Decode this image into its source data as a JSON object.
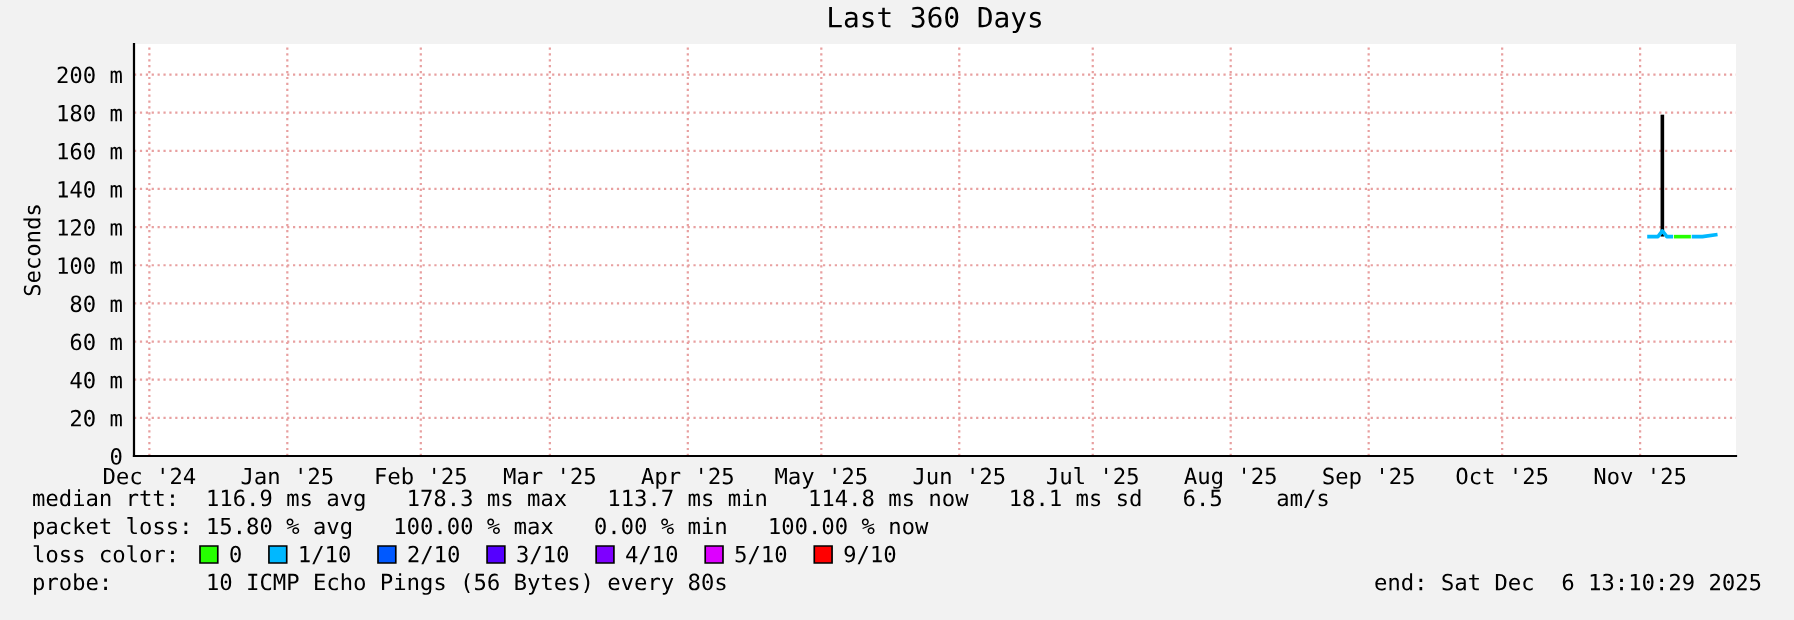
{
  "chart_data": {
    "type": "line",
    "title": "Last 360 Days",
    "ylabel": "Seconds",
    "xlim": [
      "2024-12-11T13:10",
      "2025-12-06T13:10"
    ],
    "xticks": [
      {
        "value": "2024-12-15",
        "label": "Dec '24"
      },
      {
        "value": "2025-01-15",
        "label": "Jan '25"
      },
      {
        "value": "2025-02-14",
        "label": "Feb '25"
      },
      {
        "value": "2025-03-15",
        "label": "Mar '25"
      },
      {
        "value": "2025-04-15",
        "label": "Apr '25"
      },
      {
        "value": "2025-05-15",
        "label": "May '25"
      },
      {
        "value": "2025-06-15",
        "label": "Jun '25"
      },
      {
        "value": "2025-07-15",
        "label": "Jul '25"
      },
      {
        "value": "2025-08-15",
        "label": "Aug '25"
      },
      {
        "value": "2025-09-15",
        "label": "Sep '25"
      },
      {
        "value": "2025-10-15",
        "label": "Oct '25"
      },
      {
        "value": "2025-11-15",
        "label": "Nov '25"
      }
    ],
    "ylim": [
      0,
      216
    ],
    "yticks": [
      0,
      {
        "value": 20,
        "label": "20 m"
      },
      {
        "value": 40,
        "label": "40 m"
      },
      {
        "value": 60,
        "label": "60 m"
      },
      {
        "value": 80,
        "label": "80 m"
      },
      {
        "value": 100,
        "label": "100 m"
      },
      {
        "value": 120,
        "label": "120 m"
      },
      {
        "value": 140,
        "label": "140 m"
      },
      {
        "value": 160,
        "label": "160 m"
      },
      {
        "value": 180,
        "label": "180 m"
      },
      {
        "value": 200,
        "label": "200 m"
      }
    ],
    "grid": true,
    "legend": "bottom",
    "legend_title": "loss color:",
    "series": [
      {
        "color": "#000000",
        "x": [
          "2025-11-20T00:00",
          "2025-11-20T00:00"
        ],
        "values": [
          116,
          178
        ]
      },
      {
        "name": "0",
        "color": "#26ff00",
        "x": [
          "2025-11-23",
          "2025-11-26"
        ],
        "values": [
          115,
          115
        ]
      },
      {
        "name": "1/10",
        "color": "#00b8ff",
        "x": [
          "2025-11-17",
          "2025-11-18",
          "2025-11-19",
          "2025-11-20",
          "2025-11-21",
          "2025-11-22",
          "2025-11-24",
          "2025-11-27",
          "2025-11-29",
          "2025-12-02"
        ],
        "values": [
          115,
          115,
          115,
          118,
          115,
          115,
          null,
          115,
          115,
          116
        ]
      },
      {
        "name": "2/10",
        "color": "#0059ff"
      },
      {
        "name": "3/10",
        "color": "#5500ff"
      },
      {
        "name": "4/10",
        "color": "#7e00ff"
      },
      {
        "name": "5/10",
        "color": "#dd00ff"
      },
      {
        "name": "9/10",
        "color": "#ff0000"
      }
    ],
    "annotations": [
      "median rtt:  116.9 ms avg   178.3 ms max   113.7 ms min   114.8 ms now   18.1 ms sd   6.5    am/s",
      "packet loss: 15.80 % avg   100.00 % max   0.00 % min   100.00 % now",
      "probe:       10 ICMP Echo Pings (56 Bytes) every 80s",
      "end: Sat Dec  6 13:10:29 2025"
    ]
  }
}
